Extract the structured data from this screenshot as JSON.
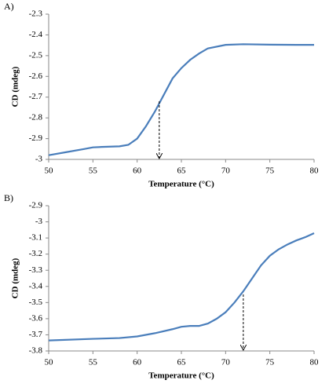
{
  "chart_data": [
    {
      "type": "line",
      "panel_label": "A)",
      "xlabel": "Temperature (°C)",
      "ylabel": "CD (mdeg)",
      "color": "#4a7ebb",
      "x": [
        50,
        52,
        54,
        55,
        56,
        58,
        59,
        60,
        61,
        62,
        63,
        64,
        65,
        66,
        67,
        68,
        70,
        72,
        75,
        78,
        80
      ],
      "values": [
        -2.98,
        -2.965,
        -2.95,
        -2.942,
        -2.94,
        -2.937,
        -2.93,
        -2.9,
        -2.84,
        -2.77,
        -2.69,
        -2.61,
        -2.56,
        -2.52,
        -2.49,
        -2.465,
        -2.448,
        -2.445,
        -2.447,
        -2.448,
        -2.448
      ],
      "marker": {
        "x": 62.5,
        "y": -2.72
      },
      "xlim": [
        50,
        80
      ],
      "xticks": [
        50,
        55,
        60,
        65,
        70,
        75,
        80
      ],
      "ylim": [
        -3,
        -2.3
      ],
      "yticks": [
        -3,
        -2.9,
        -2.8,
        -2.7,
        -2.6,
        -2.5,
        -2.4,
        -2.3
      ],
      "grid": false
    },
    {
      "type": "line",
      "panel_label": "B)",
      "xlabel": "Temperature (°C)",
      "ylabel": "CD (mdeg)",
      "color": "#4a7ebb",
      "x": [
        50,
        55,
        58,
        60,
        62,
        64,
        65,
        66,
        67,
        68,
        69,
        70,
        71,
        72,
        73,
        74,
        75,
        76,
        77,
        78,
        79,
        80
      ],
      "values": [
        -3.735,
        -3.725,
        -3.72,
        -3.71,
        -3.69,
        -3.665,
        -3.65,
        -3.645,
        -3.645,
        -3.63,
        -3.6,
        -3.56,
        -3.5,
        -3.43,
        -3.35,
        -3.27,
        -3.21,
        -3.17,
        -3.14,
        -3.115,
        -3.095,
        -3.07
      ],
      "marker": {
        "x": 72,
        "y": -3.45
      },
      "xlim": [
        50,
        80
      ],
      "xticks": [
        50,
        55,
        60,
        65,
        70,
        75,
        80
      ],
      "ylim": [
        -3.8,
        -2.9
      ],
      "yticks": [
        -3.8,
        -3.7,
        -3.6,
        -3.5,
        -3.4,
        -3.3,
        -3.2,
        -3.1,
        -3,
        -2.9
      ],
      "grid": false
    }
  ]
}
